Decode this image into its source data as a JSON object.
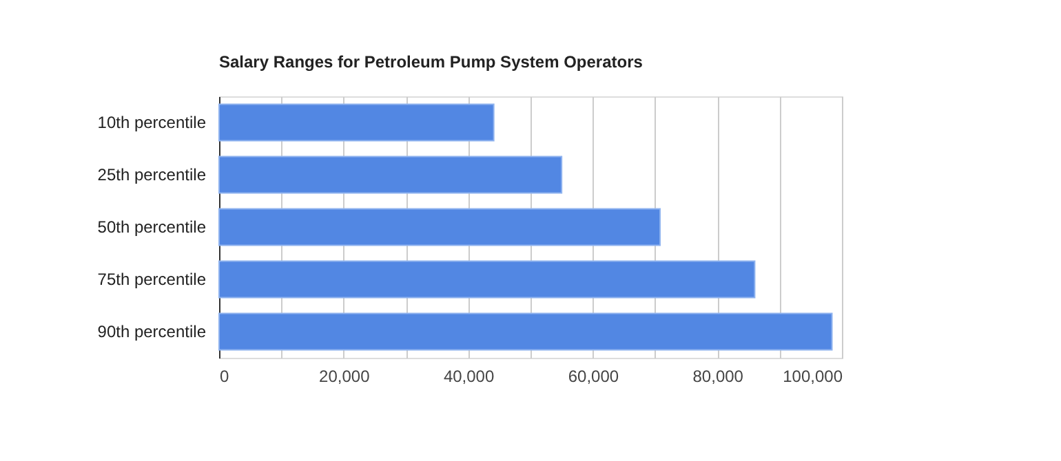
{
  "chart_data": {
    "type": "bar",
    "orientation": "horizontal",
    "title": "Salary Ranges for Petroleum Pump System Operators",
    "categories": [
      "10th percentile",
      "25th percentile",
      "50th percentile",
      "75th percentile",
      "90th percentile"
    ],
    "values": [
      44100,
      55000,
      70800,
      86000,
      98400
    ],
    "color": "#5287e3",
    "xlim": [
      0,
      100000
    ],
    "xticks": [
      0,
      {
        "value": 10000,
        "label": null
      },
      {
        "value": 20000,
        "label": "20,000"
      },
      {
        "value": 30000,
        "label": null
      },
      {
        "value": 40000,
        "label": "40,000"
      },
      {
        "value": 50000,
        "label": null
      },
      {
        "value": 60000,
        "label": "60,000"
      },
      {
        "value": 70000,
        "label": null
      },
      {
        "value": 80000,
        "label": "80,000"
      },
      {
        "value": 90000,
        "label": null
      },
      {
        "value": 100000,
        "label": "100,000"
      }
    ],
    "grid": "x"
  }
}
